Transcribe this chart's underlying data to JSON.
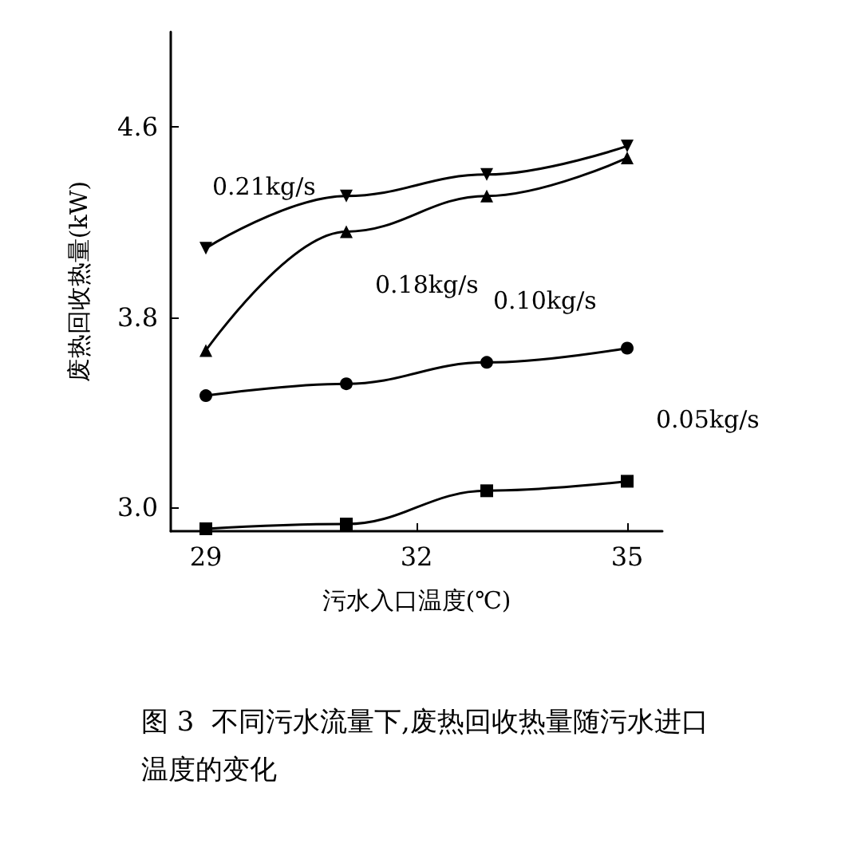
{
  "chart_data": {
    "type": "line",
    "xlabel": "污水入口温度(℃)",
    "ylabel": "废热回收热量(kW)",
    "x": [
      29,
      31,
      33,
      35
    ],
    "series": [
      {
        "name": "0.21kg/s",
        "color": "#000000",
        "marker": "triangle-down",
        "values": [
          4.09,
          4.31,
          4.4,
          4.52
        ]
      },
      {
        "name": "0.18kg/s",
        "color": "#000000",
        "marker": "triangle",
        "values": [
          3.66,
          4.16,
          4.31,
          4.47
        ]
      },
      {
        "name": "0.10kg/s",
        "color": "#000000",
        "marker": "circle",
        "values": [
          3.47,
          3.52,
          3.61,
          3.67
        ]
      },
      {
        "name": "0.05kg/s",
        "color": "#000000",
        "marker": "square",
        "values": [
          2.91,
          2.93,
          3.07,
          3.11
        ]
      }
    ],
    "xlim": [
      28.5,
      35.5
    ],
    "xticks": [
      29,
      32,
      35
    ],
    "ylim": [
      2.9,
      5.0
    ],
    "yticks": [
      {
        "value": 3,
        "label": "3.0"
      },
      {
        "value": 3.8,
        "label": "3.8"
      },
      {
        "value": 4.6,
        "label": "4.6"
      }
    ],
    "grid": false,
    "legend": false,
    "line_style": "solid",
    "annotations": [
      "图 3  不同污水流量下,废热回收热量随污水进口温度的变化"
    ]
  }
}
